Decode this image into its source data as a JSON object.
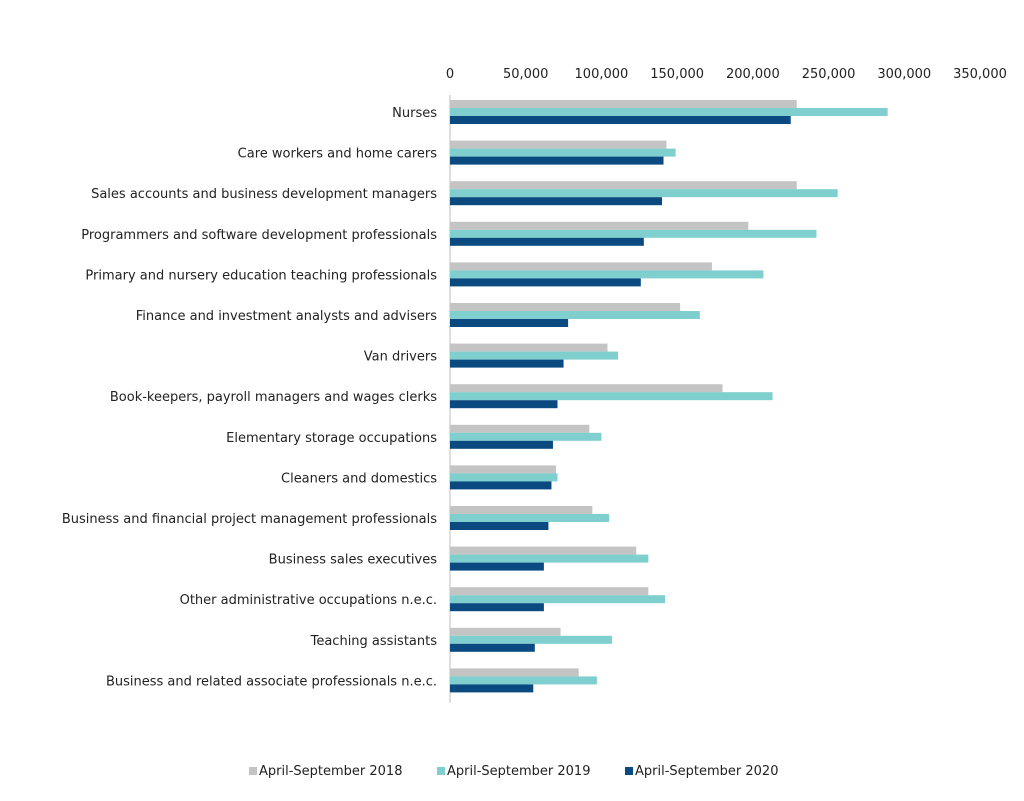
{
  "chart_data": {
    "type": "bar",
    "orientation": "horizontal",
    "title": "",
    "xlabel": "",
    "ylabel": "",
    "xlim": [
      0,
      350000
    ],
    "x_ticks": [
      "0",
      "50,000",
      "100,000",
      "150,000",
      "200,000",
      "250,000",
      "300,000",
      "350,000"
    ],
    "x_tick_values": [
      0,
      50000,
      100000,
      150000,
      200000,
      250000,
      300000,
      350000
    ],
    "x_axis_position": "top",
    "grid": false,
    "legend_position": "bottom",
    "categories": [
      "Nurses",
      "Care workers and home carers",
      "Sales accounts and business development managers",
      "Programmers and software development professionals",
      "Primary and nursery education teaching professionals",
      "Finance and investment analysts and advisers",
      "Van drivers",
      "Book-keepers, payroll managers and wages clerks",
      "Elementary storage occupations",
      "Cleaners and domestics",
      "Business and financial project management professionals",
      "Business sales executives",
      "Other administrative occupations n.e.c.",
      "Teaching assistants",
      "Business and related associate professionals n.e.c."
    ],
    "series": [
      {
        "name": "April-September 2018",
        "color": "#c4c4c4",
        "values": [
          229000,
          143000,
          229000,
          197000,
          173000,
          152000,
          104000,
          180000,
          92000,
          70000,
          94000,
          123000,
          131000,
          73000,
          85000
        ]
      },
      {
        "name": "April-September 2019",
        "color": "#7ecfcd",
        "values": [
          289000,
          149000,
          256000,
          242000,
          207000,
          165000,
          111000,
          213000,
          100000,
          71000,
          105000,
          131000,
          142000,
          107000,
          97000
        ]
      },
      {
        "name": "April-September 2020",
        "color": "#0b4a80",
        "values": [
          225000,
          141000,
          140000,
          128000,
          126000,
          78000,
          75000,
          71000,
          68000,
          67000,
          65000,
          62000,
          62000,
          56000,
          55000
        ]
      }
    ]
  }
}
